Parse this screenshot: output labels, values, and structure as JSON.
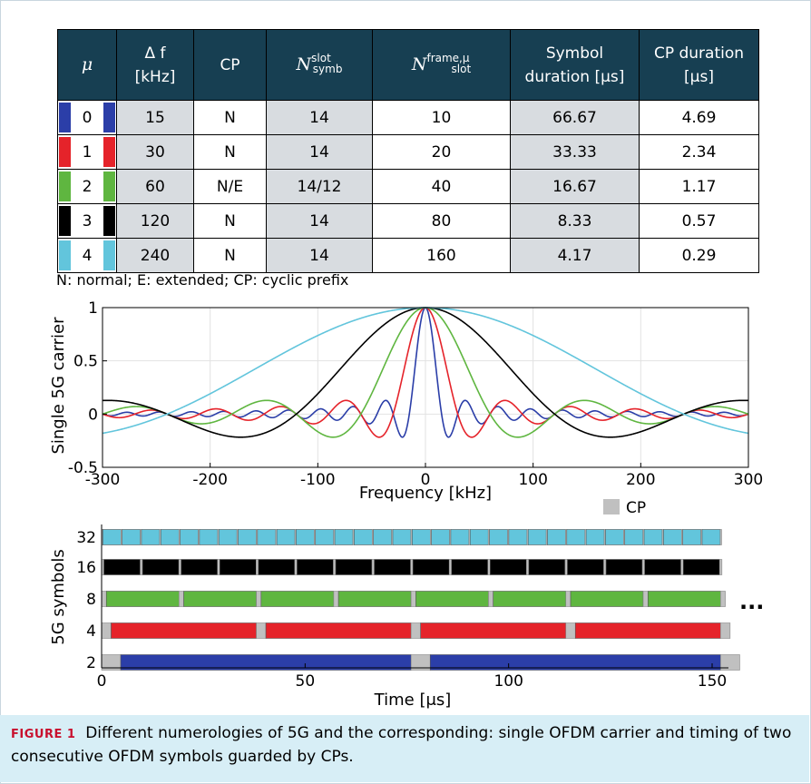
{
  "table": {
    "headers": {
      "mu": "μ",
      "delta_f_line1": "Δ f",
      "delta_f_line2": "[kHz]",
      "cp": "CP",
      "nsymb_main": "N",
      "nsymb_sup": "slot",
      "nsymb_sub": "symb",
      "nslot_main": "N",
      "nslot_sup": "frame,μ",
      "nslot_sub": "slot",
      "symdur_line1": "Symbol",
      "symdur_line2": "duration [μs]",
      "cpdur_line1": "CP duration",
      "cpdur_line2": "[μs]"
    },
    "rows": [
      {
        "mu": "0",
        "delta_f": "15",
        "cp": "N",
        "nsymb": "14",
        "nslot": "10",
        "symdur": "66.67",
        "cpdur": "4.69",
        "color": "#2b3ea8"
      },
      {
        "mu": "1",
        "delta_f": "30",
        "cp": "N",
        "nsymb": "14",
        "nslot": "20",
        "symdur": "33.33",
        "cpdur": "2.34",
        "color": "#e5232a"
      },
      {
        "mu": "2",
        "delta_f": "60",
        "cp": "N/E",
        "nsymb": "14/12",
        "nslot": "40",
        "symdur": "16.67",
        "cpdur": "1.17",
        "color": "#5fb640"
      },
      {
        "mu": "3",
        "delta_f": "120",
        "cp": "N",
        "nsymb": "14",
        "nslot": "80",
        "symdur": "8.33",
        "cpdur": "0.57",
        "color": "#000000"
      },
      {
        "mu": "4",
        "delta_f": "240",
        "cp": "N",
        "nsymb": "14",
        "nslot": "160",
        "symdur": "4.17",
        "cpdur": "0.29",
        "color": "#62c5dc"
      }
    ],
    "note": "N: normal; E: extended; CP: cyclic prefix"
  },
  "chart_data": [
    {
      "type": "line",
      "xlabel": "Frequency [kHz]",
      "ylabel": "Single 5G carrier",
      "xlim": [
        -300,
        300
      ],
      "ylim": [
        -0.5,
        1
      ],
      "xticks": [
        "-300",
        "-200",
        "-100",
        "0",
        "100",
        "200",
        "300"
      ],
      "yticks": [
        "1",
        "0.5",
        "0",
        "-0.5"
      ],
      "grid": true,
      "series": [
        {
          "subcarrier_spacing_khz": 15,
          "color": "#2b3ea8"
        },
        {
          "subcarrier_spacing_khz": 30,
          "color": "#e5232a"
        },
        {
          "subcarrier_spacing_khz": 60,
          "color": "#5fb640"
        },
        {
          "subcarrier_spacing_khz": 120,
          "color": "#000000"
        },
        {
          "subcarrier_spacing_khz": 240,
          "color": "#62c5dc"
        }
      ]
    },
    {
      "type": "bar",
      "xlabel": "Time [μs]",
      "ylabel": "5G symbols",
      "xlim": [
        0,
        150
      ],
      "xticks": [
        "0",
        "50",
        "100",
        "150"
      ],
      "legend": [
        {
          "label": "CP",
          "color": "#c0c0c0"
        }
      ],
      "legend_position": "top-right",
      "continuation": "...",
      "rows": [
        {
          "label": "32",
          "symbols": 32,
          "symbol_us": 4.46,
          "cp_us": 0.29,
          "color": "#62c5dc"
        },
        {
          "label": "16",
          "symbols": 16,
          "symbol_us": 8.92,
          "cp_us": 0.57,
          "color": "#000000"
        },
        {
          "label": "8",
          "symbols": 8,
          "symbol_us": 17.84,
          "cp_us": 1.17,
          "color": "#5fb640"
        },
        {
          "label": "4",
          "symbols": 4,
          "symbol_us": 35.68,
          "cp_us": 2.34,
          "color": "#e5232a"
        },
        {
          "label": "2",
          "symbols": 2,
          "symbol_us": 71.36,
          "cp_us": 4.69,
          "color": "#2b3ea8"
        }
      ]
    }
  ],
  "caption": {
    "label": "FIGURE 1",
    "text": "Different numerologies of 5G and the corresponding: single OFDM carrier and timing of two consecutive OFDM symbols guarded by CPs."
  }
}
